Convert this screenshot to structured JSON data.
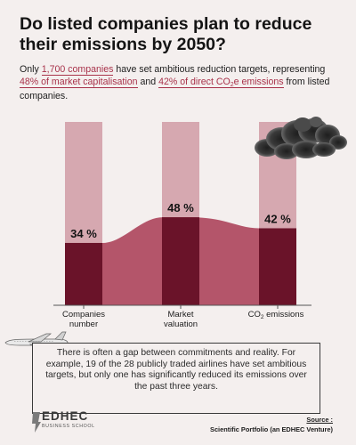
{
  "title": "Do listed companies plan to reduce their emissions by 2050?",
  "intro": {
    "t1": "Only ",
    "h1": "1,700 companies",
    "t2": " have set ambitious reduction targets, representing ",
    "h2": "48% of market capitalisation",
    "t3": " and ",
    "h3_a": "42% of direct CO",
    "h3_sub": "2",
    "h3_b": "e emissions",
    "t4": " from listed companies."
  },
  "chart_data": {
    "type": "bar",
    "categories": [
      "Companies number",
      "Market valuation",
      "CO2 emissions"
    ],
    "category_display": [
      {
        "line1": "Companies",
        "line2": "number"
      },
      {
        "line1": "Market",
        "line2": "valuation"
      },
      {
        "line1": "CO",
        "sub": "2",
        "line1b": " emissions"
      }
    ],
    "values": [
      34,
      48,
      42
    ],
    "value_labels": [
      "34 %",
      "48 %",
      "42 %"
    ],
    "ylim": [
      0,
      100
    ],
    "colors": {
      "bar_bg": "#d6a8b0",
      "bar_fill": "#6a1329",
      "area": "#b4556a",
      "axis": "#555555"
    }
  },
  "note": "There is often a gap between commitments and reality. For example, 19 of the 28 publicly traded airlines have set ambitious targets, but only one has significantly reduced its emissions over the past three years.",
  "logo": {
    "name": "EDHEC",
    "sub": "BUSINESS SCHOOL"
  },
  "source": {
    "label": "Source :",
    "text": "Scientific Portfolio (an EDHEC Venture)"
  }
}
